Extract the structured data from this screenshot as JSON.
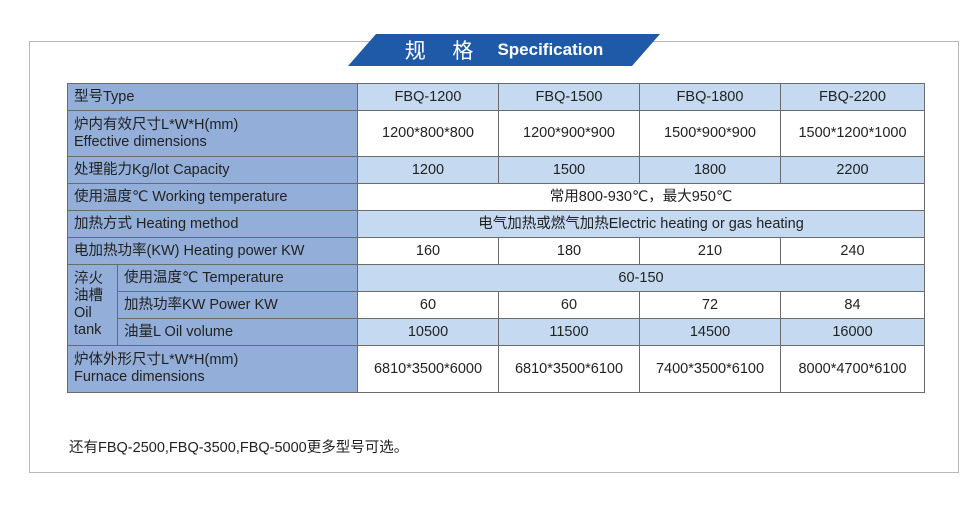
{
  "banner": {
    "title_cn": "规 格",
    "title_en": "Specification",
    "color": "#1e5aa8"
  },
  "table": {
    "header": {
      "label": "型号Type",
      "models": [
        "FBQ-1200",
        "FBQ-1500",
        "FBQ-1800",
        "FBQ-2200"
      ]
    },
    "rows": {
      "effective": {
        "label_cn": "炉内有效尺寸L*W*H(mm)",
        "label_en": "Effective dimensions",
        "values": [
          "1200*800*800",
          "1200*900*900",
          "1500*900*900",
          "1500*1200*1000"
        ]
      },
      "capacity": {
        "label": "处理能力Kg/lot  Capacity",
        "values": [
          "1200",
          "1500",
          "1800",
          "2200"
        ]
      },
      "working_temp": {
        "label": "使用温度℃  Working temperature",
        "value": "常用800-930℃，最大950℃"
      },
      "heating_method": {
        "label": "加热方式 Heating method",
        "value": "电气加热或燃气加热Electric heating or gas heating"
      },
      "heating_power": {
        "label": "电加热功率(KW) Heating power KW",
        "values": [
          "160",
          "180",
          "210",
          "240"
        ]
      },
      "oil_tank": {
        "group_label_lines": [
          "淬火",
          "油槽",
          "Oil",
          "tank"
        ],
        "temperature": {
          "label": "使用温度℃  Temperature",
          "value": "60-150"
        },
        "power": {
          "label": "加热功率KW  Power KW",
          "values": [
            "60",
            "60",
            "72",
            "84"
          ]
        },
        "volume": {
          "label": "油量L  Oil volume",
          "values": [
            "10500",
            "11500",
            "14500",
            "16000"
          ]
        }
      },
      "furnace": {
        "label_cn": "炉体外形尺寸L*W*H(mm)",
        "label_en": "Furnace dimensions",
        "values": [
          "6810*3500*6000",
          "6810*3500*6100",
          "7400*3500*6100",
          "8000*4700*6100"
        ]
      }
    }
  },
  "footnote": "还有FBQ-2500,FBQ-3500,FBQ-5000更多型号可选。"
}
